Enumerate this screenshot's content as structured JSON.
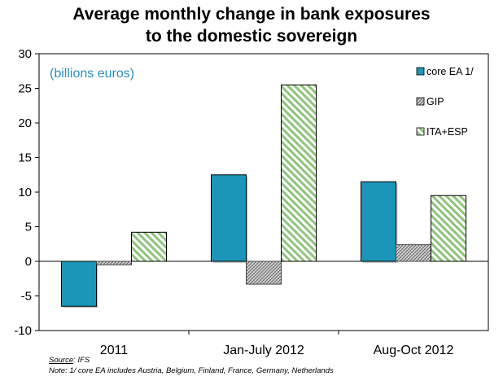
{
  "title": {
    "line1": "Average monthly change in bank exposures",
    "line2": "to the domestic sovereign"
  },
  "unit_label": "(billions euros)",
  "source_label": "Source",
  "source_value": ": IFS",
  "note": "Note: 1/ core EA  includes Austria, Belgium, Finland, France, Germany, Netherlands",
  "colors": {
    "core": "#1b95b8",
    "gip": "#bfbfbf",
    "ita_esp": "#9ccc8a"
  },
  "chart_data": {
    "type": "bar",
    "title": "Average monthly change in bank exposures to the domestic sovereign",
    "ylabel": "(billions euros)",
    "categories": [
      "2011",
      "Jan-July 2012",
      "Aug-Oct 2012"
    ],
    "series": [
      {
        "name": "core EA  1/",
        "values": [
          -6.5,
          12.5,
          11.5
        ],
        "pattern": "solid"
      },
      {
        "name": "GIP",
        "values": [
          -0.5,
          -3.3,
          2.4
        ],
        "pattern": "crosshatch"
      },
      {
        "name": "ITA+ESP",
        "values": [
          4.2,
          25.5,
          9.5
        ],
        "pattern": "diagonal"
      }
    ],
    "ylim": [
      -10,
      30
    ],
    "yticks": [
      -10,
      -5,
      0,
      5,
      10,
      15,
      20,
      25,
      30
    ],
    "legend_position": "right",
    "grid": false
  }
}
